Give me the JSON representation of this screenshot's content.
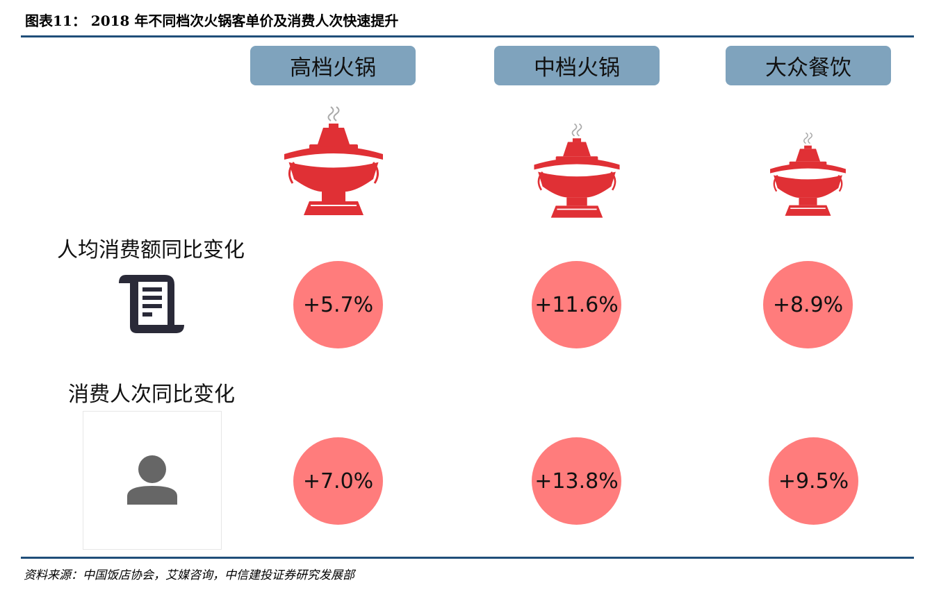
{
  "figure": {
    "title": "图表11： 2018 年不同档次火锅客单价及消费人次快速提升",
    "source": "资料来源：中国饭店协会，艾媒咨询，中信建投证券研究发展部"
  },
  "categories": [
    {
      "label": "高档火锅"
    },
    {
      "label": "中档火锅"
    },
    {
      "label": "大众餐饮"
    }
  ],
  "rows": [
    {
      "label": "人均消费额同比变化",
      "icon": "receipt-icon",
      "values": [
        "+5.7%",
        "+11.6%",
        "+8.9%"
      ]
    },
    {
      "label": "消费人次同比变化",
      "icon": "person-icon",
      "values": [
        "+7.0%",
        "+13.8%",
        "+9.5%"
      ]
    }
  ],
  "colors": {
    "header_bg": "#7fa3bd",
    "circle": "#ff7c7c",
    "pot": "#e03035",
    "rule": "#1f4e79"
  }
}
